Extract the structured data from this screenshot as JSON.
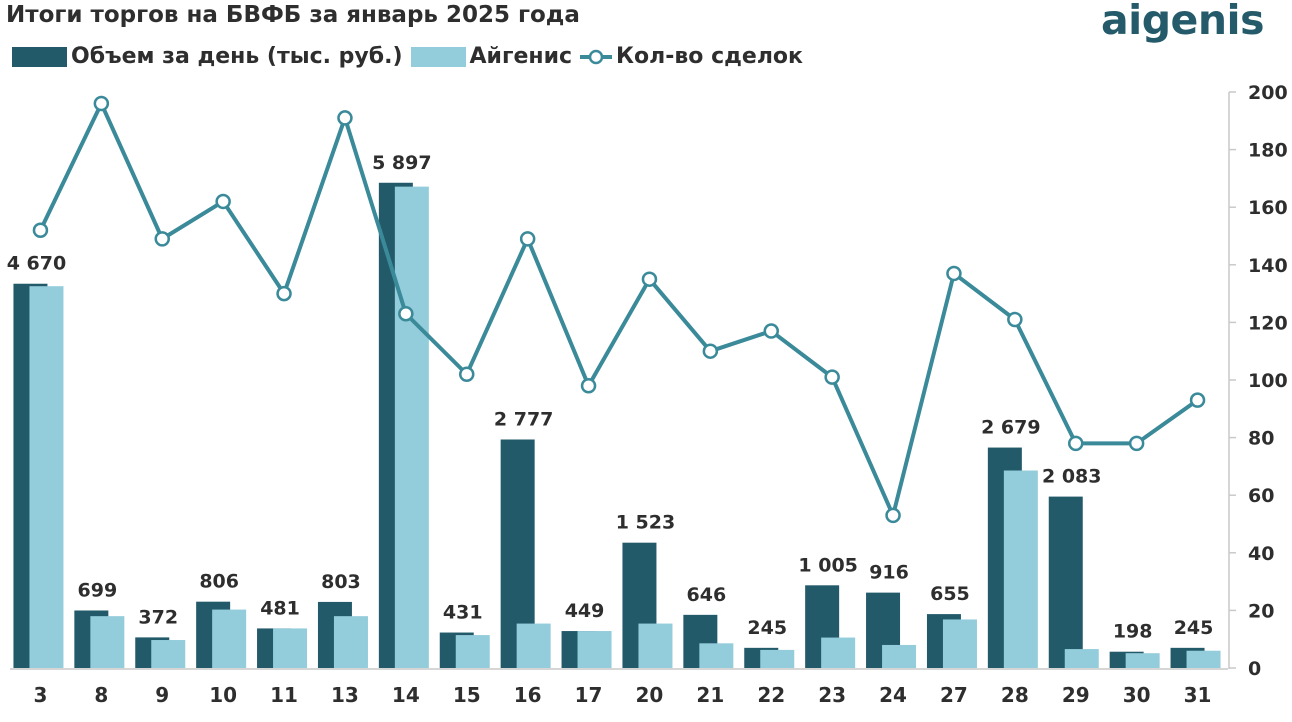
{
  "header": {
    "title": "Итоги торгов на БВФБ за январь 2025 года",
    "logo_text": "aigenis"
  },
  "colors": {
    "volume": "#235a6a",
    "aigenis": "#93ccdb",
    "deals_line": "#3a8a9a",
    "text": "#2e2e2e",
    "axis": "#c9c9c9"
  },
  "chart_data": {
    "type": "bar",
    "title": "Итоги торгов на БВФБ за январь 2025 года",
    "categories": [
      "3",
      "8",
      "9",
      "10",
      "11",
      "13",
      "14",
      "15",
      "16",
      "17",
      "20",
      "21",
      "22",
      "23",
      "24",
      "27",
      "28",
      "29",
      "30",
      "31"
    ],
    "series": [
      {
        "name": "Объем за день (тыс. руб.)",
        "type": "bar",
        "axis": "left",
        "values": [
          4670,
          699,
          372,
          806,
          481,
          803,
          5897,
          431,
          2777,
          449,
          1523,
          646,
          245,
          1005,
          916,
          655,
          2679,
          2083,
          198,
          245
        ],
        "labels": [
          "4 670",
          "699",
          "372",
          "806",
          "481",
          "803",
          "5 897",
          "431",
          "2 777",
          "449",
          "1 523",
          "646",
          "245",
          "1 005",
          "916",
          "655",
          "2 679",
          "2 083",
          "198",
          "245"
        ]
      },
      {
        "name": "Айгенис",
        "type": "bar",
        "axis": "left",
        "values": [
          4640,
          630,
          340,
          710,
          481,
          630,
          5850,
          400,
          540,
          449,
          540,
          300,
          220,
          370,
          280,
          590,
          2400,
          230,
          180,
          210
        ]
      },
      {
        "name": "Кол-во сделок",
        "type": "line",
        "axis": "right",
        "values": [
          152,
          196,
          149,
          162,
          130,
          191,
          123,
          102,
          149,
          98,
          135,
          110,
          117,
          101,
          53,
          137,
          121,
          78,
          78,
          93
        ]
      }
    ],
    "ylim_left": [
      0,
      7000
    ],
    "ylim_right": [
      0,
      200
    ],
    "right_ticks": [
      "0",
      "20",
      "40",
      "60",
      "80",
      "100",
      "120",
      "140",
      "160",
      "180",
      "200"
    ],
    "legend_position": "top-left",
    "grid": false
  }
}
